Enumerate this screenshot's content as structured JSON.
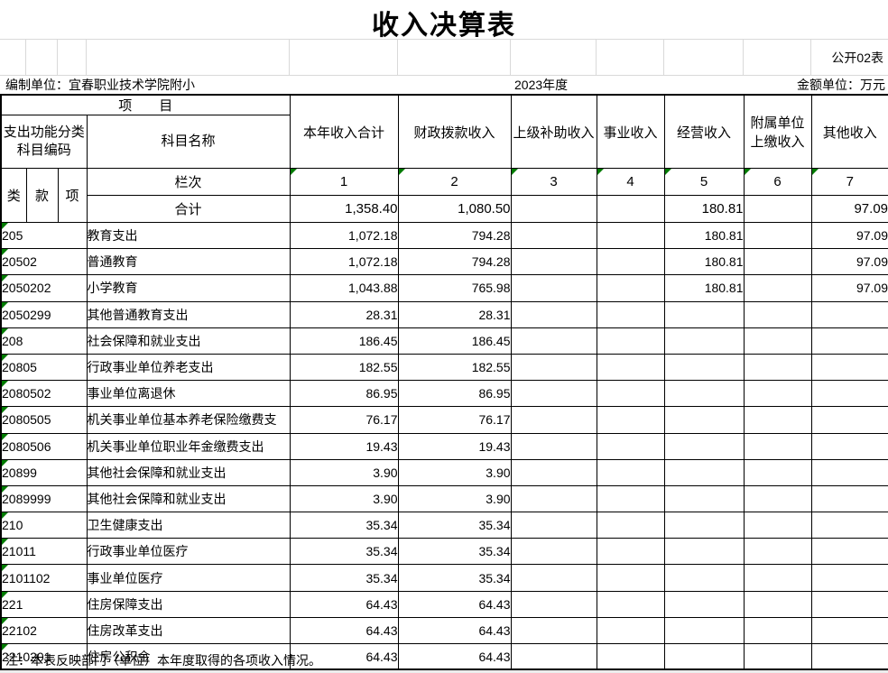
{
  "page": {
    "title": "收入决算表",
    "sheet_label": "公开02表",
    "org_label": "编制单位：宜春职业技术学院附小",
    "year_label": "2023年度",
    "unit_label": "金额单位：万元",
    "note": "注：本表反映部门（单位）本年度取得的各项收入情况。"
  },
  "colors": {
    "border": "#000000",
    "grid_light": "#d9d9d9",
    "error_triangle": "#007b00"
  },
  "table": {
    "project_header": "项　　目",
    "code_header": "支出功能分类 科目编码",
    "name_header": "科目名称",
    "sub_headers": [
      "类",
      "款",
      "项"
    ],
    "lanci_label": "栏次",
    "total_label": "合计",
    "columns": [
      "本年收入合计",
      "财政拨款收入",
      "上级补助收入",
      "事业收入",
      "经营收入",
      "附属单位上缴收入",
      "其他收入"
    ],
    "column_numbers": [
      "1",
      "2",
      "3",
      "4",
      "5",
      "6",
      "7"
    ],
    "total_row": [
      "1,358.40",
      "1,080.50",
      "",
      "",
      "180.81",
      "",
      "97.09"
    ],
    "rows": [
      {
        "code": "205",
        "name": "教育支出",
        "values": [
          "1,072.18",
          "794.28",
          "",
          "",
          "180.81",
          "",
          "97.09"
        ]
      },
      {
        "code": "20502",
        "name": "普通教育",
        "values": [
          "1,072.18",
          "794.28",
          "",
          "",
          "180.81",
          "",
          "97.09"
        ]
      },
      {
        "code": "2050202",
        "name": "小学教育",
        "values": [
          "1,043.88",
          "765.98",
          "",
          "",
          "180.81",
          "",
          "97.09"
        ]
      },
      {
        "code": "2050299",
        "name": "其他普通教育支出",
        "values": [
          "28.31",
          "28.31",
          "",
          "",
          "",
          "",
          ""
        ]
      },
      {
        "code": "208",
        "name": "社会保障和就业支出",
        "values": [
          "186.45",
          "186.45",
          "",
          "",
          "",
          "",
          ""
        ]
      },
      {
        "code": "20805",
        "name": "行政事业单位养老支出",
        "values": [
          "182.55",
          "182.55",
          "",
          "",
          "",
          "",
          ""
        ]
      },
      {
        "code": "2080502",
        "name": "事业单位离退休",
        "values": [
          "86.95",
          "86.95",
          "",
          "",
          "",
          "",
          ""
        ]
      },
      {
        "code": "2080505",
        "name": "机关事业单位基本养老保险缴费支",
        "values": [
          "76.17",
          "76.17",
          "",
          "",
          "",
          "",
          ""
        ]
      },
      {
        "code": "2080506",
        "name": "机关事业单位职业年金缴费支出",
        "values": [
          "19.43",
          "19.43",
          "",
          "",
          "",
          "",
          ""
        ]
      },
      {
        "code": "20899",
        "name": "其他社会保障和就业支出",
        "values": [
          "3.90",
          "3.90",
          "",
          "",
          "",
          "",
          ""
        ]
      },
      {
        "code": "2089999",
        "name": "其他社会保障和就业支出",
        "values": [
          "3.90",
          "3.90",
          "",
          "",
          "",
          "",
          ""
        ]
      },
      {
        "code": "210",
        "name": "卫生健康支出",
        "values": [
          "35.34",
          "35.34",
          "",
          "",
          "",
          "",
          ""
        ]
      },
      {
        "code": "21011",
        "name": "行政事业单位医疗",
        "values": [
          "35.34",
          "35.34",
          "",
          "",
          "",
          "",
          ""
        ]
      },
      {
        "code": "2101102",
        "name": "事业单位医疗",
        "values": [
          "35.34",
          "35.34",
          "",
          "",
          "",
          "",
          ""
        ]
      },
      {
        "code": "221",
        "name": "住房保障支出",
        "values": [
          "64.43",
          "64.43",
          "",
          "",
          "",
          "",
          ""
        ]
      },
      {
        "code": "22102",
        "name": "住房改革支出",
        "values": [
          "64.43",
          "64.43",
          "",
          "",
          "",
          "",
          ""
        ]
      },
      {
        "code": "2210201",
        "name": "住房公积金",
        "values": [
          "64.43",
          "64.43",
          "",
          "",
          "",
          "",
          ""
        ]
      }
    ]
  }
}
